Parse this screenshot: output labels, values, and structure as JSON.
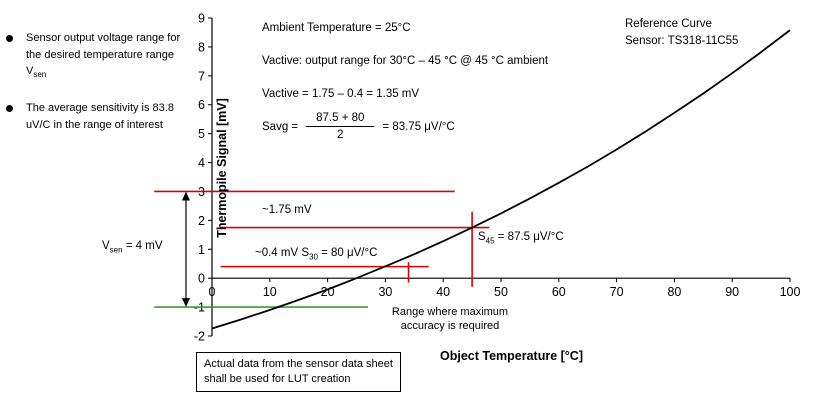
{
  "colors": {
    "curve": "#000000",
    "axis": "#000000",
    "text": "#000000",
    "guide_red": "#dd0000",
    "guide_green": "#33a033"
  },
  "bullets": [
    {
      "text": "Sensor output voltage range for the desired temperature range V",
      "sub": "sen"
    },
    {
      "text": "The average sensitivity is 83.8 uV/C in the range of interest"
    }
  ],
  "vsen_label": {
    "prefix": "V",
    "sub": "sen",
    "suffix": " = 4 mV"
  },
  "annotations": {
    "ambient": "Ambient Temperature = 25°C",
    "vactive_desc": "Vactive: output range for 30°C – 45 °C @ 45 °C ambient",
    "vactive_calc": "Vactive = 1.75 – 0.4 = 1.35 mV",
    "savg_lhs": "Savg =",
    "savg_numerator": "87.5 + 80",
    "savg_denominator": "2",
    "savg_rhs": "= 83.75 μV/°C",
    "reference_line1": "Reference Curve",
    "reference_line2": "Sensor: TS318-11C55",
    "v175": "~1.75 mV",
    "v04_prefix": "~0.4 mV  S",
    "v04_sub": "30",
    "v04_suffix": " = 80 μV/°C",
    "s45_prefix": "S",
    "s45_sub": "45",
    "s45_suffix": " = 87.5 μV/°C",
    "range_note_line1": "Range where maximum",
    "range_note_line2": "accuracy is required",
    "lut_note_line1": "Actual data from the sensor data sheet",
    "lut_note_line2": "shall be used for LUT creation"
  },
  "chart_data": {
    "type": "line",
    "title": "",
    "xlabel": "Object Temperature [°C]",
    "ylabel": "Thermopile Signal [mV]",
    "xlim": [
      0,
      100
    ],
    "ylim": [
      -2,
      9
    ],
    "x_ticks": [
      0,
      10,
      20,
      30,
      40,
      50,
      60,
      70,
      80,
      90,
      100
    ],
    "y_ticks": [
      -2,
      -1,
      0,
      1,
      2,
      3,
      4,
      5,
      6,
      7,
      8,
      9
    ],
    "grid": false,
    "legend": "none",
    "series": [
      {
        "name": "Reference Curve Sensor: TS318-11C55",
        "x": [
          0,
          5,
          10,
          15,
          20,
          25,
          30,
          35,
          40,
          45,
          50,
          55,
          60,
          65,
          70,
          75,
          80,
          85,
          90,
          95,
          100
        ],
        "y": [
          -1.74,
          -1.43,
          -1.1,
          -0.75,
          -0.39,
          0,
          0.41,
          0.83,
          1.28,
          1.75,
          2.24,
          2.76,
          3.3,
          3.86,
          4.45,
          5.07,
          5.72,
          6.39,
          7.09,
          7.82,
          8.58
        ]
      }
    ],
    "guides": {
      "red_hlines": [
        {
          "y": 3,
          "x_from": -10,
          "x_to": 42
        },
        {
          "y": 1.75,
          "x_from": 1.5,
          "x_to": 48
        },
        {
          "y": 0.4,
          "x_from": 1.5,
          "x_to": 37.5
        }
      ],
      "red_vlines": [
        {
          "x": 45,
          "y_from": -0.3,
          "y_to": 2.3
        },
        {
          "x": 34,
          "y_from": -0.15,
          "y_to": 0.55
        }
      ],
      "green_hlines": [
        {
          "y": -1,
          "x_from": -10,
          "x_to": 27
        }
      ],
      "vsen_arrow": {
        "x": -4.5,
        "y_from": -1,
        "y_to": 3
      }
    }
  }
}
